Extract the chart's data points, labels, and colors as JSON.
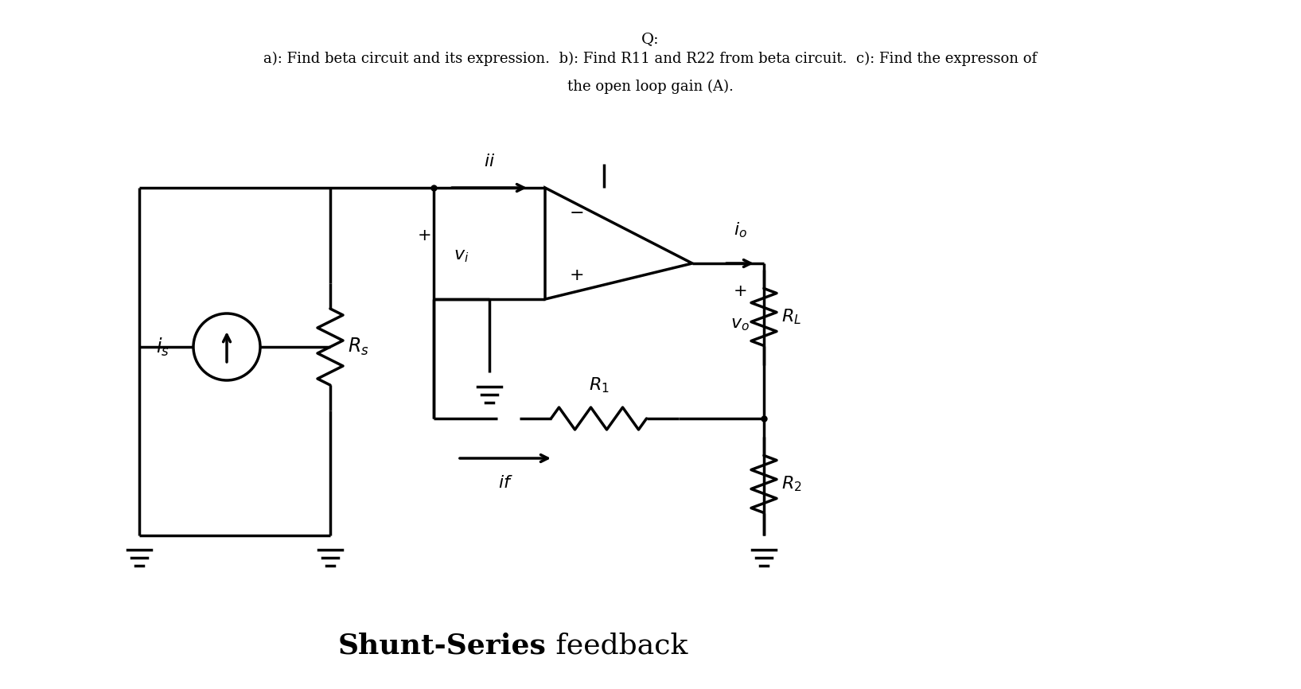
{
  "title_q": "Q:",
  "title_line1": "a): Find beta circuit and its expression.  b): Find R11 and R22 from beta circuit.  c): Find the expresson of",
  "title_line2": "the open loop gain (A).",
  "bottom_title_bold": "Shunt-Series",
  "bottom_title_normal": " feedback",
  "bg_color": "#ffffff",
  "line_color": "#000000",
  "lw": 2.5,
  "fig_w": 16.35,
  "fig_h": 8.66
}
